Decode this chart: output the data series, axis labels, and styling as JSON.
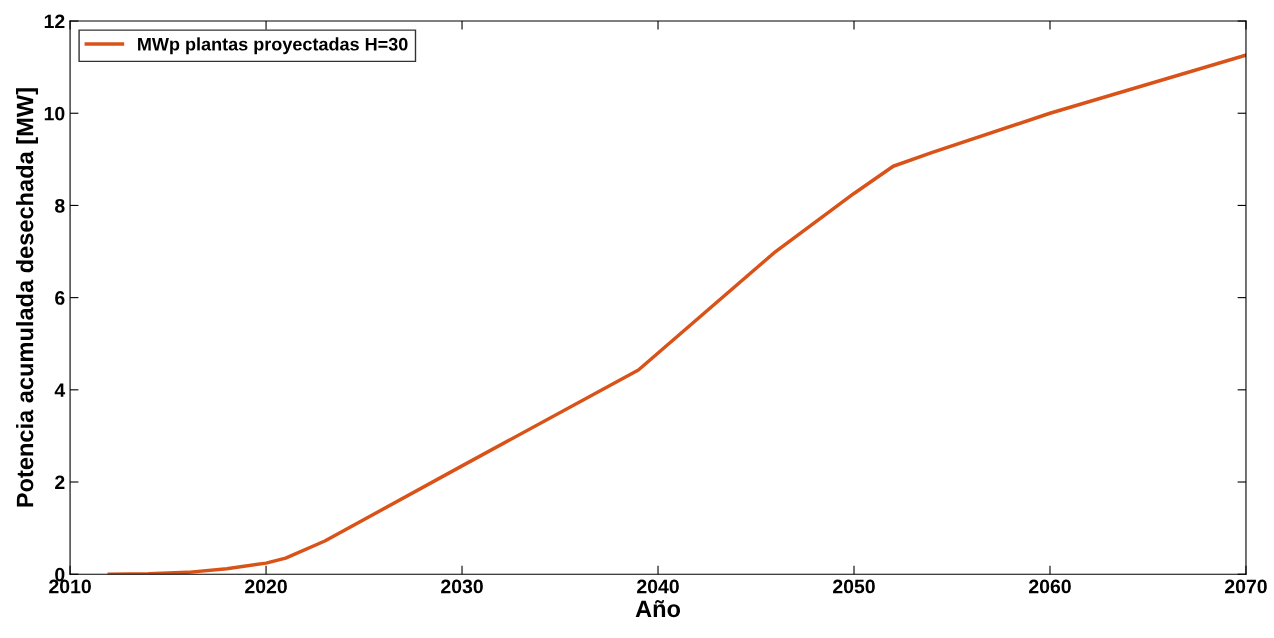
{
  "chart_data": {
    "type": "line",
    "xlabel": "Año",
    "ylabel": "Potencia acumulada desechada [MW]",
    "xlim": [
      2010,
      2070
    ],
    "xticks": [
      2010,
      2020,
      2030,
      2040,
      2050,
      2060,
      2070
    ],
    "ylim": [
      0,
      12
    ],
    "yticks": [
      0,
      2,
      4,
      6,
      8,
      10,
      12
    ],
    "grid": false,
    "legend": "top left",
    "marker": "none",
    "line_style": "solid",
    "series": [
      {
        "name": "MWp plantas proyectadas H=30",
        "color": "#d95319",
        "x": [
          2012,
          2014,
          2016,
          2018,
          2020,
          2021,
          2023,
          2030,
          2039,
          2046,
          2050,
          2052,
          2054,
          2060,
          2070
        ],
        "values": [
          0,
          0.01,
          0.04,
          0.12,
          0.24,
          0.35,
          0.72,
          2.35,
          4.43,
          7.0,
          8.26,
          8.85,
          9.15,
          10.0,
          11.26
        ]
      }
    ]
  }
}
